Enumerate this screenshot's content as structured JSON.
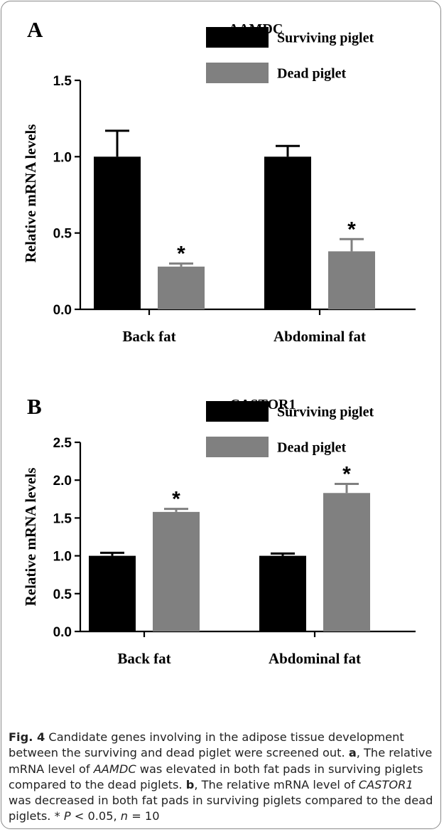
{
  "colors": {
    "surviving": "#000000",
    "dead": "#808080"
  },
  "chart_data": [
    {
      "panel": "A",
      "type": "bar",
      "title": "AAMDC",
      "ylabel": "Relative mRNA levels",
      "xlabel": "",
      "categories": [
        "Back fat",
        "Abdominal fat"
      ],
      "ylim": [
        0,
        1.5
      ],
      "yticks": [
        "0.0",
        "0.5",
        "1.0",
        "1.5"
      ],
      "legend_position": "top-right",
      "grid": false,
      "series": [
        {
          "name": "Surviving piglet",
          "color": "#000000",
          "values": [
            1.0,
            1.0
          ],
          "errors": [
            0.17,
            0.07
          ],
          "sig": [
            "",
            ""
          ]
        },
        {
          "name": "Dead piglet",
          "color": "#808080",
          "values": [
            0.28,
            0.38
          ],
          "errors": [
            0.02,
            0.08
          ],
          "sig": [
            "*",
            "*"
          ]
        }
      ]
    },
    {
      "panel": "B",
      "type": "bar",
      "title": "CASTOR1",
      "ylabel": "Relative mRNA levels",
      "xlabel": "",
      "categories": [
        "Back fat",
        "Abdominal fat"
      ],
      "ylim": [
        0,
        2.5
      ],
      "yticks": [
        "0.0",
        "0.5",
        "1.0",
        "1.5",
        "2.0",
        "2.5"
      ],
      "legend_position": "top-right",
      "grid": false,
      "series": [
        {
          "name": "Surviving piglet",
          "color": "#000000",
          "values": [
            1.0,
            1.0
          ],
          "errors": [
            0.04,
            0.03
          ],
          "sig": [
            "",
            ""
          ]
        },
        {
          "name": "Dead piglet",
          "color": "#808080",
          "values": [
            1.58,
            1.83
          ],
          "errors": [
            0.04,
            0.12
          ],
          "sig": [
            "*",
            "*"
          ]
        }
      ]
    }
  ],
  "caption": {
    "fig_label": "Fig. 4",
    "text1": " Candidate genes involving in the adipose tissue development between the surviving and dead piglet were screened out. ",
    "a_label": "a",
    "text2": ", The relative mRNA level of ",
    "gene1": "AAMDC",
    "text3": " was elevated in both fat pads in surviving piglets compared to the dead piglets. ",
    "b_label": "b",
    "text4": ", The relative mRNA level of ",
    "gene2": "CASTOR1",
    "text5": " was decreased in both fat pads in surviving piglets compared to the dead piglets. * ",
    "p_symbol": "P",
    "text6": " < 0.05, ",
    "n_symbol": "n",
    "text7": " = 10"
  }
}
